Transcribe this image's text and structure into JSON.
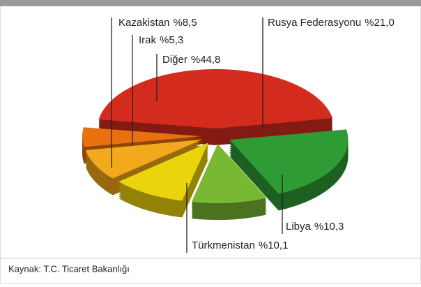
{
  "chart_data": {
    "type": "pie",
    "categories": [
      "Rusya Federasyonu",
      "Libya",
      "Türkmenistan",
      "Kazakistan",
      "Irak",
      "Diğer"
    ],
    "values": [
      21.0,
      10.3,
      10.1,
      8.5,
      5.3,
      44.8
    ],
    "value_labels": [
      "%21,0",
      "%10,3",
      "%10,1",
      "%8,5",
      "%5,3",
      "%44,8"
    ],
    "colors": [
      "#2f9b35",
      "#79b832",
      "#ecd40c",
      "#f2a91b",
      "#e8700f",
      "#d42b1f"
    ],
    "source": "Kaynak: T.C. Ticaret Bakanlığı"
  }
}
